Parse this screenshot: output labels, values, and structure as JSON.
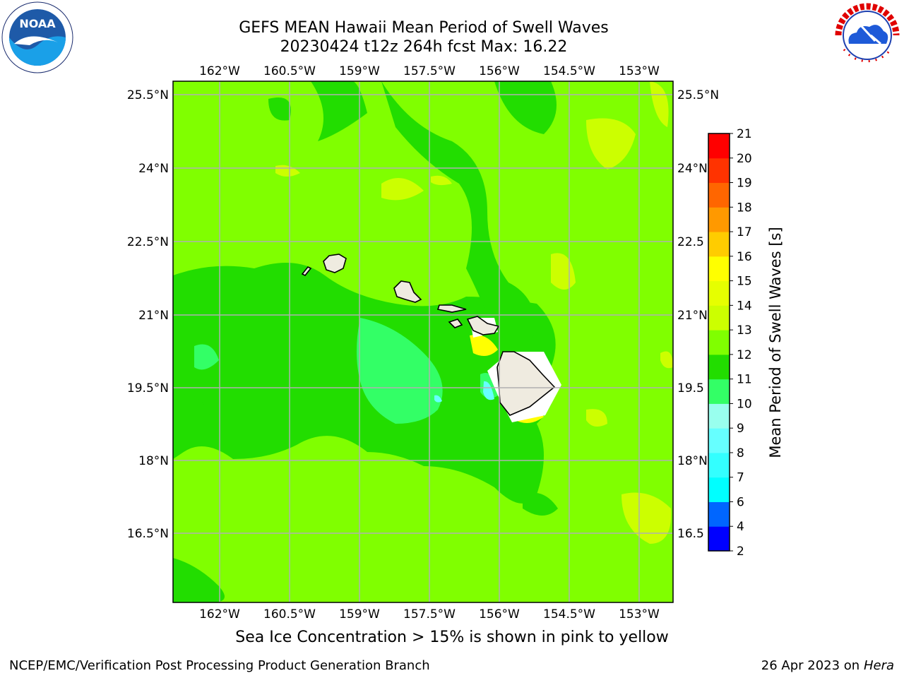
{
  "header": {
    "title_line1": "GEFS MEAN Hawaii Mean Period of Swell Waves",
    "title_line2": "20230424 t12z 264h fcst   Max: 16.22"
  },
  "logos": {
    "left": "NOAA",
    "left_ring_text": "NATIONAL OCEANIC AND ATMOSPHERIC ADMINISTRATION · U.S. DEPARTMENT OF COMMERCE",
    "right_ring_text": "NATIONAL WEATHER SERVICE"
  },
  "map": {
    "lon_labels": [
      "162°W",
      "160.5°W",
      "159°W",
      "157.5°W",
      "156°W",
      "154.5°W",
      "153°W"
    ],
    "lat_labels": [
      "25.5°N",
      "24°N",
      "22.5°N",
      "21°N",
      "19.5°N",
      "18°N",
      "16.5°N"
    ],
    "lat_labels_right": [
      "25.5°N",
      "24°N",
      "22.5",
      "21°N",
      "19.5",
      "18°N",
      "16.5"
    ],
    "background_color": "#80ff00"
  },
  "colorbar": {
    "label": "Mean Period of Swell Waves [s]",
    "ticks": [
      "2",
      "4",
      "6",
      "7",
      "8",
      "9",
      "10",
      "11",
      "12",
      "13",
      "14",
      "15",
      "16",
      "17",
      "18",
      "19",
      "20",
      "21"
    ],
    "colors": [
      "#0000ff",
      "#0066ff",
      "#00ffff",
      "#33ffff",
      "#66ffff",
      "#99ffee",
      "#33ff66",
      "#22dd00",
      "#80ff00",
      "#ccff00",
      "#e6ff00",
      "#ffff00",
      "#ffcc00",
      "#ff9900",
      "#ff6600",
      "#ff3300",
      "#ff0000"
    ]
  },
  "note": "Sea Ice Concentration > 15% is shown in pink to yellow",
  "footer": {
    "left": "NCEP/EMC/Verification Post Processing Product Generation Branch",
    "right_date": "26 Apr 2023 on",
    "right_host": "Hera"
  }
}
